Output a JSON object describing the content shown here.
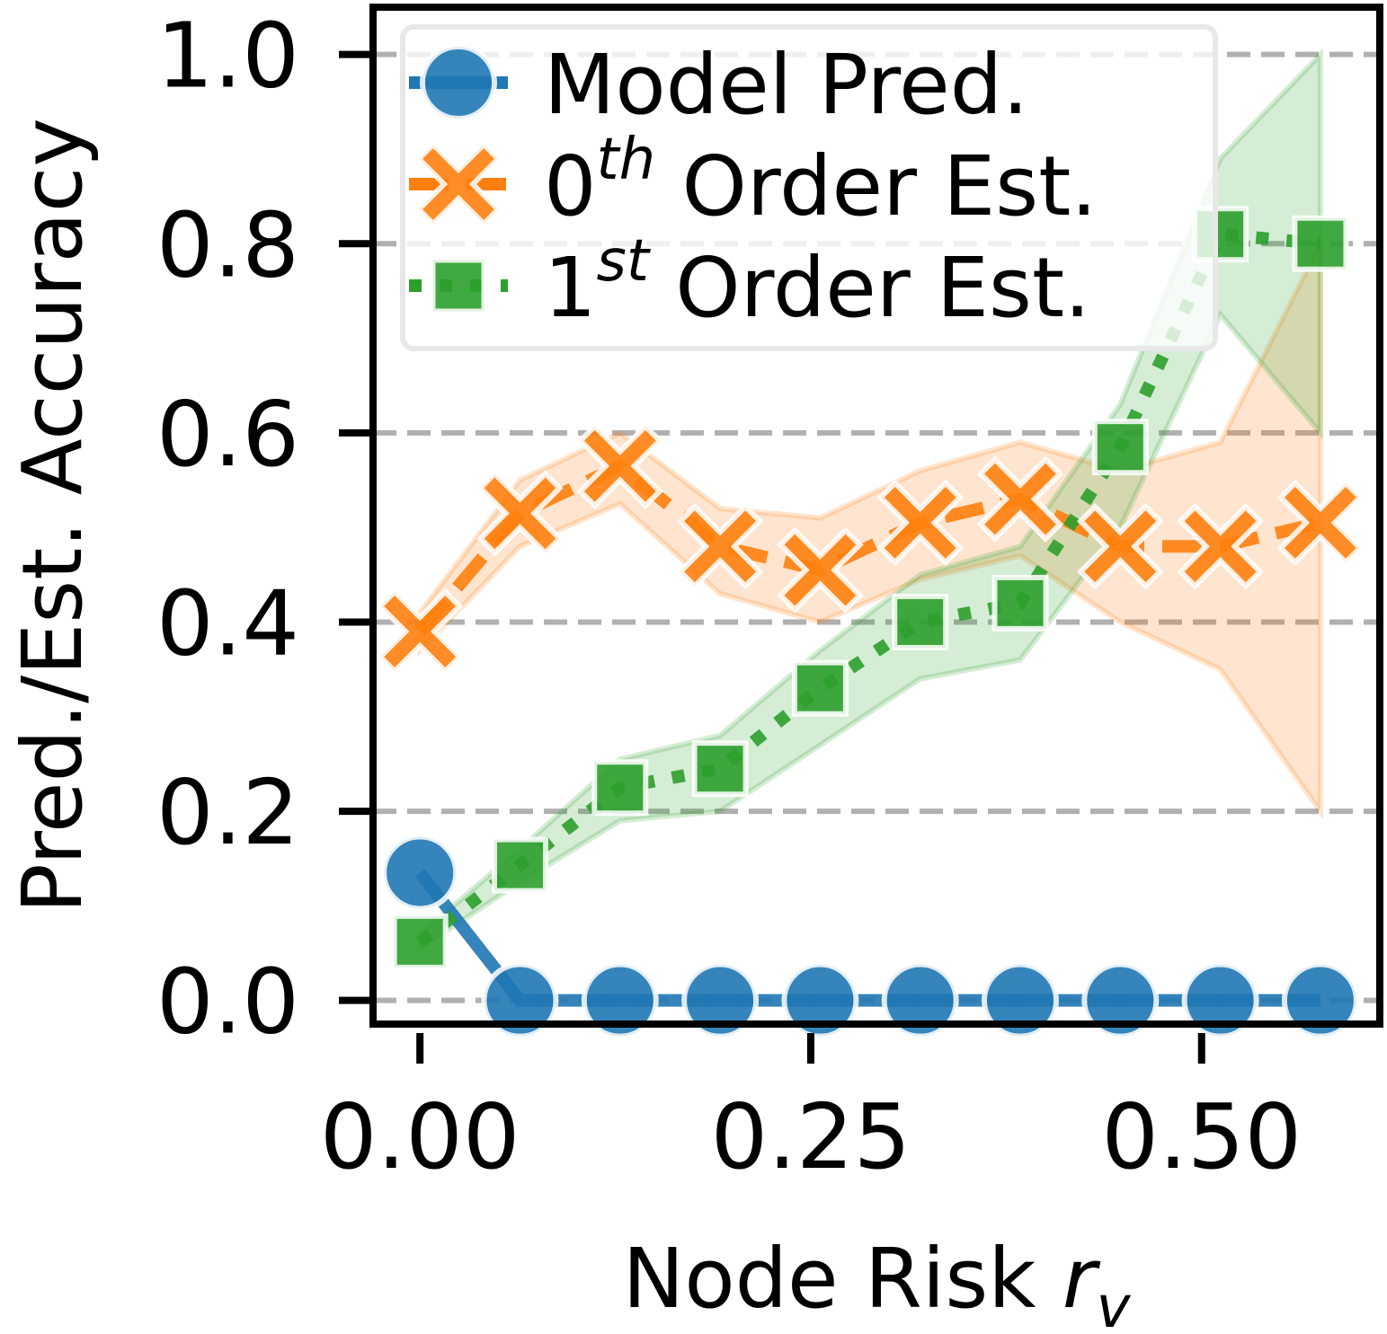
{
  "chart_data": {
    "type": "line",
    "xlabel": "Node Risk",
    "xlabel_sub": "v",
    "ylabel": "Pred./Est. Accuracy",
    "xlim": [
      -0.03,
      0.614
    ],
    "ylim": [
      -0.025,
      1.05
    ],
    "x_ticks": [
      0.0,
      0.25,
      0.5
    ],
    "x_tick_labels": [
      "0.00",
      "0.25",
      "0.50"
    ],
    "y_ticks": [
      0.0,
      0.2,
      0.4,
      0.6,
      0.8,
      1.0
    ],
    "y_tick_labels": [
      "0.0",
      "0.2",
      "0.4",
      "0.6",
      "0.8",
      "1.0"
    ],
    "grid": "horizontal dashed",
    "legend_placement": "top-left",
    "x": [
      0.0,
      0.064,
      0.128,
      0.192,
      0.256,
      0.32,
      0.384,
      0.448,
      0.512,
      0.576
    ],
    "series": [
      {
        "name": "Model Pred.",
        "color": "#1f77b4",
        "marker": "circle",
        "linestyle": "solid",
        "values": [
          0.135,
          0.0,
          0.0,
          0.0,
          0.0,
          0.0,
          0.0,
          0.0,
          0.0,
          0.0
        ]
      },
      {
        "name": "Order Est.",
        "name_prefix": "0",
        "name_sup": "th",
        "color": "#ff7f0e",
        "marker": "x",
        "linestyle": "dashed",
        "values": [
          0.39,
          0.515,
          0.565,
          0.48,
          0.455,
          0.505,
          0.53,
          0.48,
          0.48,
          0.505
        ],
        "ci_lower": [
          0.37,
          0.48,
          0.525,
          0.43,
          0.4,
          0.445,
          0.47,
          0.4,
          0.35,
          0.2
        ],
        "ci_upper": [
          0.41,
          0.55,
          0.6,
          0.52,
          0.51,
          0.56,
          0.59,
          0.56,
          0.59,
          0.8
        ]
      },
      {
        "name": "Order Est.",
        "name_prefix": "1",
        "name_sup": "st",
        "color": "#2ca02c",
        "marker": "square",
        "linestyle": "dotted",
        "values": [
          0.062,
          0.143,
          0.225,
          0.245,
          0.33,
          0.4,
          0.42,
          0.585,
          0.81,
          0.8
        ],
        "ci_lower": [
          0.055,
          0.125,
          0.19,
          0.2,
          0.27,
          0.34,
          0.36,
          0.5,
          0.725,
          0.6
        ],
        "ci_upper": [
          0.07,
          0.16,
          0.255,
          0.28,
          0.37,
          0.45,
          0.48,
          0.63,
          0.89,
          1.0
        ]
      }
    ]
  }
}
